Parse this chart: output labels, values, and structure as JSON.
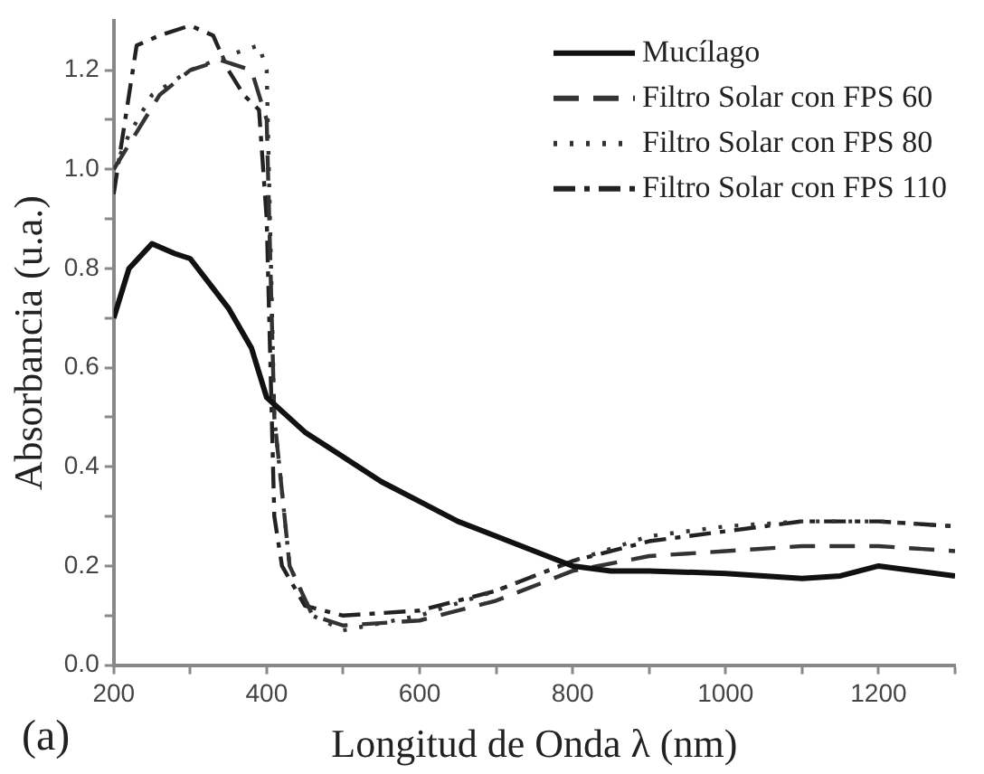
{
  "chart_data": {
    "type": "line",
    "xlabel": "Longitud de Onda λ (nm)",
    "ylabel": "Absorbancia (u.a.)",
    "annotations": [
      "(a)"
    ],
    "xlim": [
      200,
      1300
    ],
    "xticks": [
      200,
      {
        "value": 300,
        "label": null
      },
      400,
      {
        "value": 500,
        "label": null
      },
      600,
      {
        "value": 700,
        "label": null
      },
      800,
      {
        "value": 900,
        "label": null
      },
      1000,
      {
        "value": 1100,
        "label": null
      },
      1200,
      {
        "value": 1300,
        "label": null
      }
    ],
    "ylim": [
      0,
      1.3
    ],
    "yticks": [
      {
        "value": 0,
        "label": "0.0"
      },
      {
        "value": 0.1,
        "label": null
      },
      0.2,
      {
        "value": 0.3,
        "label": null
      },
      0.4,
      {
        "value": 0.5,
        "label": null
      },
      0.6,
      {
        "value": 0.7,
        "label": null
      },
      0.8,
      {
        "value": 0.9,
        "label": null
      },
      {
        "value": 1,
        "label": "1.0"
      },
      {
        "value": 1.1,
        "label": null
      },
      1.2
    ],
    "grid": false,
    "legend": "top right",
    "marker": "none",
    "series": [
      {
        "name": "Mucílago",
        "color": "#111111",
        "line_style": "solid",
        "x": [
          200,
          220,
          250,
          280,
          300,
          330,
          350,
          380,
          400,
          450,
          500,
          550,
          600,
          650,
          700,
          750,
          800,
          850,
          900,
          1000,
          1100,
          1150,
          1200,
          1250,
          1300
        ],
        "values": [
          0.7,
          0.8,
          0.85,
          0.83,
          0.82,
          0.76,
          0.72,
          0.64,
          0.54,
          0.47,
          0.42,
          0.37,
          0.33,
          0.29,
          0.26,
          0.23,
          0.2,
          0.19,
          0.19,
          0.185,
          0.175,
          0.18,
          0.2,
          0.19,
          0.18
        ]
      },
      {
        "name": "Filtro Solar con FPS 60",
        "color": "#333333",
        "line_style": "dashed",
        "x": [
          200,
          220,
          260,
          300,
          340,
          380,
          400,
          410,
          430,
          460,
          500,
          600,
          700,
          800,
          900,
          1000,
          1100,
          1200,
          1300
        ],
        "values": [
          1.0,
          1.05,
          1.15,
          1.2,
          1.22,
          1.2,
          1.1,
          0.5,
          0.2,
          0.1,
          0.08,
          0.09,
          0.13,
          0.19,
          0.22,
          0.23,
          0.24,
          0.24,
          0.23
        ]
      },
      {
        "name": "Filtro Solar con FPS 80",
        "color": "#333333",
        "line_style": "dotted",
        "x": [
          200,
          220,
          250,
          300,
          350,
          390,
          400,
          410,
          430,
          460,
          500,
          600,
          700,
          800,
          900,
          1000,
          1100,
          1200,
          1300
        ],
        "values": [
          1.0,
          1.07,
          1.15,
          1.2,
          1.23,
          1.25,
          1.2,
          0.5,
          0.2,
          0.1,
          0.07,
          0.1,
          0.15,
          0.21,
          0.26,
          0.28,
          0.29,
          0.29,
          0.28
        ]
      },
      {
        "name": "Filtro Solar con FPS 110",
        "color": "#222222",
        "line_style": "dashdot",
        "x": [
          200,
          210,
          230,
          260,
          300,
          330,
          350,
          370,
          390,
          400,
          410,
          420,
          450,
          500,
          600,
          700,
          800,
          900,
          1000,
          1100,
          1200,
          1300
        ],
        "values": [
          0.95,
          1.05,
          1.25,
          1.27,
          1.29,
          1.27,
          1.2,
          1.15,
          1.12,
          0.9,
          0.3,
          0.2,
          0.12,
          0.1,
          0.11,
          0.15,
          0.21,
          0.25,
          0.27,
          0.29,
          0.29,
          0.28
        ]
      }
    ]
  }
}
